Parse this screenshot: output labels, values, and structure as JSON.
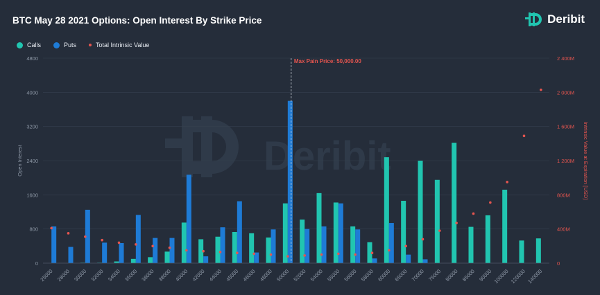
{
  "header": {
    "title": "BTC May 28 2021 Options: Open Interest By Strike Price",
    "brand": "Deribit",
    "watermark": "Deribit"
  },
  "colors": {
    "calls": "#21c5b0",
    "puts": "#1e7bd6",
    "intrinsic": "#e5554f",
    "background": "#252d3a",
    "grid": "#36404f"
  },
  "chart_data": {
    "type": "bar",
    "categories": [
      "25000",
      "28000",
      "30000",
      "32000",
      "34000",
      "35000",
      "36000",
      "38000",
      "40000",
      "42000",
      "44000",
      "45000",
      "46000",
      "48000",
      "50000",
      "52000",
      "54000",
      "55000",
      "56000",
      "58000",
      "60000",
      "65000",
      "70000",
      "75000",
      "80000",
      "85000",
      "90000",
      "100000",
      "120000",
      "140000"
    ],
    "series": [
      {
        "name": "Calls",
        "axis": "left",
        "values": [
          0,
          0,
          10,
          10,
          40,
          100,
          140,
          270,
          950,
          560,
          620,
          730,
          700,
          600,
          1400,
          1020,
          1640,
          1420,
          860,
          490,
          2480,
          1460,
          2400,
          1950,
          2820,
          850,
          1120,
          1720,
          530,
          580
        ]
      },
      {
        "name": "Puts",
        "axis": "left",
        "values": [
          860,
          380,
          1250,
          480,
          470,
          1130,
          590,
          590,
          2070,
          160,
          840,
          1450,
          250,
          790,
          3800,
          800,
          860,
          1400,
          790,
          110,
          940,
          200,
          90,
          0,
          0,
          0,
          0,
          0,
          0,
          0
        ]
      },
      {
        "name": "Total Intrinsic Value",
        "axis": "right",
        "style": "scatter",
        "values": [
          410000000,
          350000000,
          310000000,
          270000000,
          240000000,
          220000000,
          200000000,
          180000000,
          150000000,
          140000000,
          130000000,
          120000000,
          110000000,
          100000000,
          80000000,
          90000000,
          100000000,
          110000000,
          100000000,
          120000000,
          150000000,
          200000000,
          280000000,
          380000000,
          470000000,
          580000000,
          710000000,
          950000000,
          1490000000,
          2030000000
        ]
      }
    ],
    "left_axis": {
      "label": "Open Interest",
      "ylim": [
        0,
        4800
      ],
      "ticks": [
        "0",
        "800",
        "1600",
        "2400",
        "3200",
        "4000",
        "4800"
      ]
    },
    "right_axis": {
      "label": "Intrinsic Value at Expiration [USD]",
      "ylim": [
        0,
        2400000000
      ],
      "ticks": [
        "0",
        "400M",
        "800M",
        "1 200M",
        "1 600M",
        "2 000M",
        "2 400M"
      ]
    },
    "annotation": {
      "text": "Max Pain Price: 50,000.00",
      "category": "50000"
    },
    "grid": true,
    "legend": "top-left"
  }
}
